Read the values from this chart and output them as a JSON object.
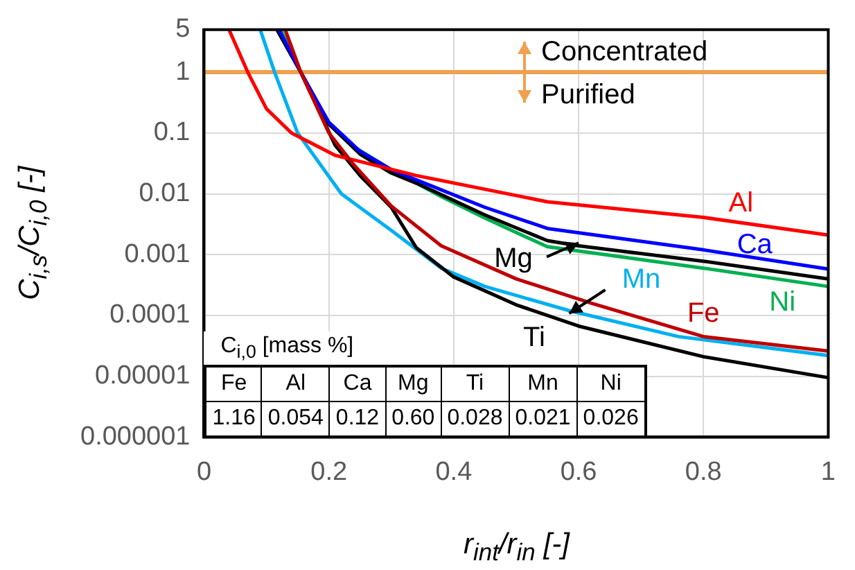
{
  "chart_data": {
    "type": "line",
    "xlabel": "r$_{int}$/r$_{in}$ [-]",
    "ylabel": "C$_{i,s}$/C$_{i,0}$ [-]",
    "log": "y",
    "xlim": [
      0,
      1
    ],
    "xticks": [
      0,
      0.2,
      0.4,
      0.6,
      0.8,
      1
    ],
    "ylim": [
      1e-06,
      5
    ],
    "yticks": [
      {
        "value": 1e-06,
        "label": "0.000001"
      },
      {
        "value": 1e-05,
        "label": "0.00001"
      },
      0.0001,
      0.001,
      0.01,
      0.1,
      1,
      5
    ],
    "grid": true,
    "marker": "none",
    "line_style": "solid",
    "ref_lines": [
      {
        "axis": "y",
        "value": 1,
        "color": "#f0a050"
      }
    ],
    "annotations": [
      "Concentrated",
      "Purified",
      "C$_{i,0}$ [mass %]",
      "Fe",
      "Al",
      "Ca",
      "Mg",
      "Ti",
      "Mn",
      "Ni",
      "1.16",
      "0.054",
      "0.12",
      "0.60",
      "0.028",
      "0.021",
      "0.026"
    ],
    "series": [
      {
        "name": "Fe",
        "color": "#c00000",
        "x": [
          0.13,
          0.155,
          0.2,
          0.24,
          0.3,
          0.38,
          0.5,
          0.62,
          0.8,
          1
        ],
        "values": [
          5,
          1,
          0.1,
          0.03,
          0.0063,
          0.0014,
          0.0004,
          0.00016,
          4.5e-05,
          2.6e-05
        ]
      },
      {
        "name": "Al",
        "color": "#ff0000",
        "x": [
          0.04,
          0.07,
          0.1,
          0.14,
          0.21,
          0.34,
          0.55,
          0.8,
          1
        ],
        "values": [
          5,
          1,
          0.25,
          0.1,
          0.043,
          0.02,
          0.0074,
          0.0041,
          0.0021
        ]
      },
      {
        "name": "Ca",
        "color": "#0000ff",
        "x": [
          0.12,
          0.155,
          0.2,
          0.25,
          0.3,
          0.34,
          0.45,
          0.55,
          0.8,
          1
        ],
        "values": [
          5,
          1,
          0.15,
          0.05,
          0.025,
          0.017,
          0.006,
          0.0027,
          0.0012,
          0.00058
        ]
      },
      {
        "name": "Mg",
        "color": "#000000",
        "x": [
          0.117,
          0.155,
          0.2,
          0.25,
          0.3,
          0.34,
          0.45,
          0.55,
          0.6,
          0.8,
          1
        ],
        "values": [
          5,
          1,
          0.14,
          0.045,
          0.022,
          0.015,
          0.0045,
          0.0017,
          0.0014,
          0.00078,
          0.0004
        ]
      },
      {
        "name": "Ti",
        "color": "#000000",
        "x": [
          0.117,
          0.155,
          0.21,
          0.25,
          0.3,
          0.34,
          0.4,
          0.5,
          0.6,
          0.8,
          1
        ],
        "values": [
          5,
          1,
          0.063,
          0.02,
          0.006,
          0.0013,
          0.00043,
          0.00015,
          6.7e-05,
          2.1e-05,
          9.5e-06
        ]
      },
      {
        "name": "Mn",
        "color": "#00b0f0",
        "x": [
          0.09,
          0.113,
          0.15,
          0.22,
          0.3,
          0.38,
          0.45,
          0.585,
          0.76,
          1
        ],
        "values": [
          5,
          1,
          0.1,
          0.01,
          0.0025,
          0.0006,
          0.0003,
          0.00012,
          4.5e-05,
          2.2e-05
        ]
      },
      {
        "name": "Ni",
        "color": "#00b050",
        "x": [
          0.123,
          0.155,
          0.2,
          0.236,
          0.3,
          0.38,
          0.45,
          0.55,
          0.8,
          1
        ],
        "values": [
          5,
          1,
          0.14,
          0.063,
          0.025,
          0.009,
          0.004,
          0.00135,
          0.0006,
          0.0003
        ]
      }
    ]
  }
}
